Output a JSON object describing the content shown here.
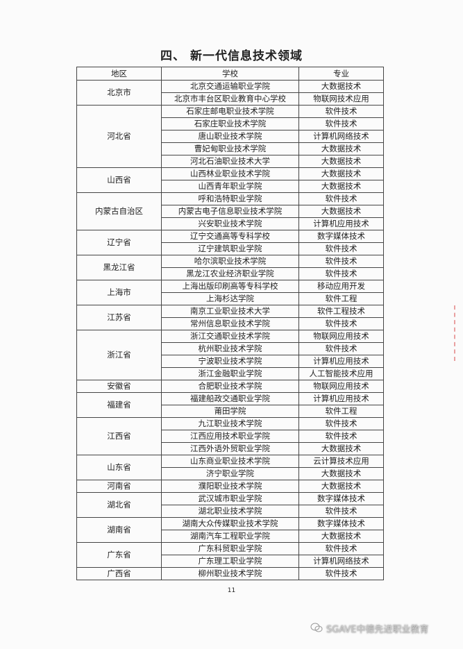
{
  "header": {
    "title": "四、 新一代信息技术领域"
  },
  "table": {
    "headers": [
      "地区",
      "学校",
      "专业"
    ],
    "groups": [
      {
        "region": "北京市",
        "rows": [
          [
            "北京交通运输职业学院",
            "大数据技术"
          ],
          [
            "北京市丰台区职业教育中心学校",
            "物联网技术应用"
          ]
        ]
      },
      {
        "region": "河北省",
        "rows": [
          [
            "石家庄邮电职业技术学院",
            "软件技术"
          ],
          [
            "石家庄职业技术学院",
            "软件技术"
          ],
          [
            "唐山职业技术学院",
            "计算机网络技术"
          ],
          [
            "曹妃甸职业技术学院",
            "大数据技术"
          ],
          [
            "河北石油职业技术大学",
            "大数据技术"
          ]
        ]
      },
      {
        "region": "山西省",
        "rows": [
          [
            "山西林业职业技术学院",
            "大数据技术"
          ],
          [
            "山西青年职业学院",
            "大数据技术"
          ]
        ]
      },
      {
        "region": "内蒙古自治区",
        "rows": [
          [
            "呼和浩特职业学院",
            "软件技术"
          ],
          [
            "内蒙古电子信息职业技术学院",
            "大数据技术"
          ],
          [
            "兴安职业技术学院",
            "计算机应用技术"
          ]
        ]
      },
      {
        "region": "辽宁省",
        "rows": [
          [
            "辽宁交通高等专科学校",
            "数字媒体技术"
          ],
          [
            "辽宁建筑职业学院",
            "软件技术"
          ]
        ]
      },
      {
        "region": "黑龙江省",
        "rows": [
          [
            "哈尔滨职业技术学院",
            "软件技术"
          ],
          [
            "黑龙江农业经济职业学院",
            "软件技术"
          ]
        ]
      },
      {
        "region": "上海市",
        "rows": [
          [
            "上海出版印刷高等专科学校",
            "移动应用开发"
          ],
          [
            "上海杉达学院",
            "软件工程"
          ]
        ]
      },
      {
        "region": "江苏省",
        "rows": [
          [
            "南京工业职业技术大学",
            "软件工程技术"
          ],
          [
            "常州信息职业技术学院",
            "软件技术"
          ]
        ]
      },
      {
        "region": "浙江省",
        "rows": [
          [
            "浙江交通职业技术学院",
            "物联网应用技术"
          ],
          [
            "杭州职业技术学院",
            "软件技术"
          ],
          [
            "宁波职业技术学院",
            "计算机应用技术"
          ],
          [
            "浙江金融职业学院",
            "人工智能技术应用"
          ]
        ]
      },
      {
        "region": "安徽省",
        "rows": [
          [
            "合肥职业技术学院",
            "物联网应用技术"
          ]
        ]
      },
      {
        "region": "福建省",
        "rows": [
          [
            "福建船政交通职业学院",
            "计算机应用技术"
          ],
          [
            "莆田学院",
            "软件工程"
          ]
        ]
      },
      {
        "region": "江西省",
        "rows": [
          [
            "九江职业技术学院",
            "软件技术"
          ],
          [
            "江西应用技术职业学院",
            "软件技术"
          ],
          [
            "江西外语外贸职业学院",
            "大数据技术"
          ]
        ]
      },
      {
        "region": "山东省",
        "rows": [
          [
            "山东商业职业技术学院",
            "云计算技术应用"
          ],
          [
            "济宁职业学院",
            "大数据技术"
          ]
        ]
      },
      {
        "region": "河南省",
        "rows": [
          [
            "濮阳职业技术学院",
            "大数据技术"
          ]
        ]
      },
      {
        "region": "湖北省",
        "rows": [
          [
            "武汉城市职业学院",
            "数字媒体技术"
          ],
          [
            "湖北职业技术学院",
            "软件技术"
          ]
        ]
      },
      {
        "region": "湖南省",
        "rows": [
          [
            "湖南大众传媒职业技术学院",
            "数字媒体技术"
          ],
          [
            "湖南汽车工程职业学院",
            "大数据技术"
          ]
        ]
      },
      {
        "region": "广东省",
        "rows": [
          [
            "广东科贸职业学院",
            "软件技术"
          ],
          [
            "广东理工职业学院",
            "计算机网络技术"
          ]
        ]
      },
      {
        "region": "广西省",
        "rows": [
          [
            "柳州职业技术学院",
            "软件技术"
          ]
        ]
      }
    ]
  },
  "footer": {
    "page_number": "11"
  },
  "watermark": {
    "text": "SGAVE中德先进职业教育"
  }
}
